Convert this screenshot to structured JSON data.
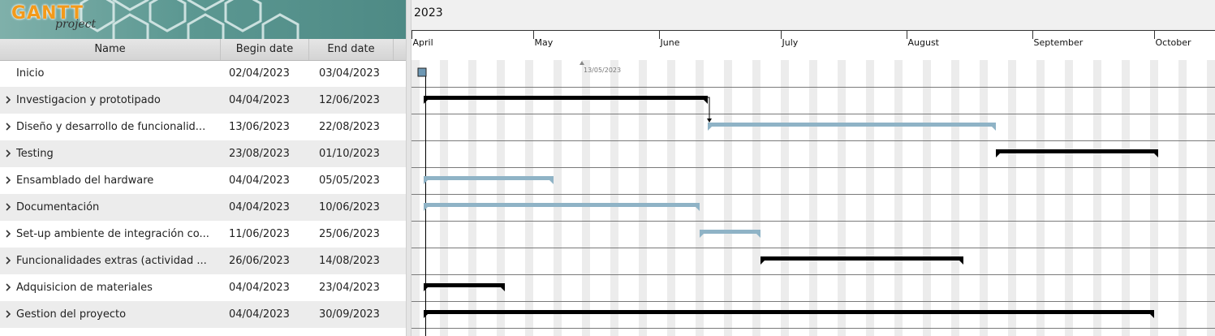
{
  "logo": {
    "brand": "GANTT",
    "sub": "project"
  },
  "table": {
    "headers": {
      "name": "Name",
      "begin": "Begin date",
      "end": "End date"
    },
    "rows": [
      {
        "name": "Inicio",
        "begin": "02/04/2023",
        "end": "03/04/2023",
        "expandable": false
      },
      {
        "name": "Investigacion y prototipado",
        "begin": "04/04/2023",
        "end": "12/06/2023",
        "expandable": true
      },
      {
        "name": "Diseño y desarrollo de funcionalid...",
        "begin": "13/06/2023",
        "end": "22/08/2023",
        "expandable": true
      },
      {
        "name": "Testing",
        "begin": "23/08/2023",
        "end": "01/10/2023",
        "expandable": true
      },
      {
        "name": "Ensamblado del hardware",
        "begin": "04/04/2023",
        "end": "05/05/2023",
        "expandable": true
      },
      {
        "name": "Documentación",
        "begin": "04/04/2023",
        "end": "10/06/2023",
        "expandable": true
      },
      {
        "name": "Set-up ambiente de integración co...",
        "begin": "11/06/2023",
        "end": "25/06/2023",
        "expandable": true
      },
      {
        "name": "Funcionalidades extras (actividad ...",
        "begin": "26/06/2023",
        "end": "14/08/2023",
        "expandable": true
      },
      {
        "name": "Adquisicion de materiales",
        "begin": "04/04/2023",
        "end": "23/04/2023",
        "expandable": true
      },
      {
        "name": "Gestion del proyecto",
        "begin": "04/04/2023",
        "end": "30/09/2023",
        "expandable": true
      }
    ]
  },
  "timeline": {
    "year": "2023",
    "months": [
      "April",
      "May",
      "June",
      "July",
      "August",
      "September",
      "October"
    ],
    "today_label": "13/05/2023",
    "bars": [
      {
        "start": "2023-04-02",
        "end": "2023-04-03",
        "style": "milestone"
      },
      {
        "start": "2023-04-04",
        "end": "2023-06-12",
        "style": "summary"
      },
      {
        "start": "2023-06-13",
        "end": "2023-08-22",
        "style": "task"
      },
      {
        "start": "2023-08-23",
        "end": "2023-10-01",
        "style": "summary"
      },
      {
        "start": "2023-04-04",
        "end": "2023-05-05",
        "style": "task"
      },
      {
        "start": "2023-04-04",
        "end": "2023-06-10",
        "style": "task"
      },
      {
        "start": "2023-06-11",
        "end": "2023-06-25",
        "style": "task"
      },
      {
        "start": "2023-06-26",
        "end": "2023-08-14",
        "style": "summary"
      },
      {
        "start": "2023-04-04",
        "end": "2023-04-23",
        "style": "summary"
      },
      {
        "start": "2023-04-04",
        "end": "2023-09-30",
        "style": "summary"
      }
    ],
    "colors": {
      "summary": "#000000",
      "task": "#8fb3c6",
      "weekend": "#ececec",
      "grid": "#7a7a7a"
    }
  }
}
